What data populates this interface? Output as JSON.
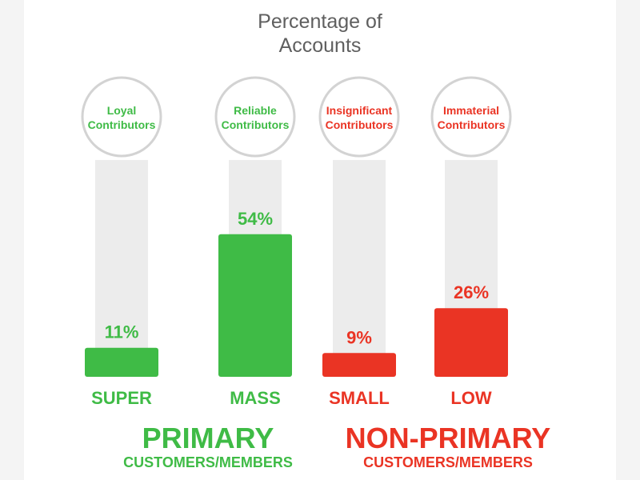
{
  "colors": {
    "green": "#3fbb46",
    "red": "#ea3424",
    "track": "#ececec",
    "circle_stroke": "#d3d3d3",
    "title": "#5f5f5f"
  },
  "chart_data": {
    "type": "bar",
    "title_lines": [
      "Percentage of",
      "Accounts"
    ],
    "categories": [
      "SUPER",
      "MASS",
      "SMALL",
      "LOW"
    ],
    "values": [
      11,
      54,
      9,
      26
    ],
    "value_labels": [
      "11%",
      "54%",
      "9%",
      "26%"
    ],
    "circle_labels": [
      [
        "Loyal",
        "Contributors"
      ],
      [
        "Reliable",
        "Contributors"
      ],
      [
        "Insignificant",
        "Contributors"
      ],
      [
        "Immaterial",
        "Contributors"
      ]
    ],
    "bar_colors": [
      "green",
      "green",
      "red",
      "red"
    ],
    "ylim": [
      0,
      100
    ],
    "groups": [
      {
        "title": "PRIMARY",
        "subtitle": "CUSTOMERS/MEMBERS",
        "color": "green"
      },
      {
        "title": "NON-PRIMARY",
        "subtitle": "CUSTOMERS/MEMBERS",
        "color": "red"
      }
    ]
  }
}
